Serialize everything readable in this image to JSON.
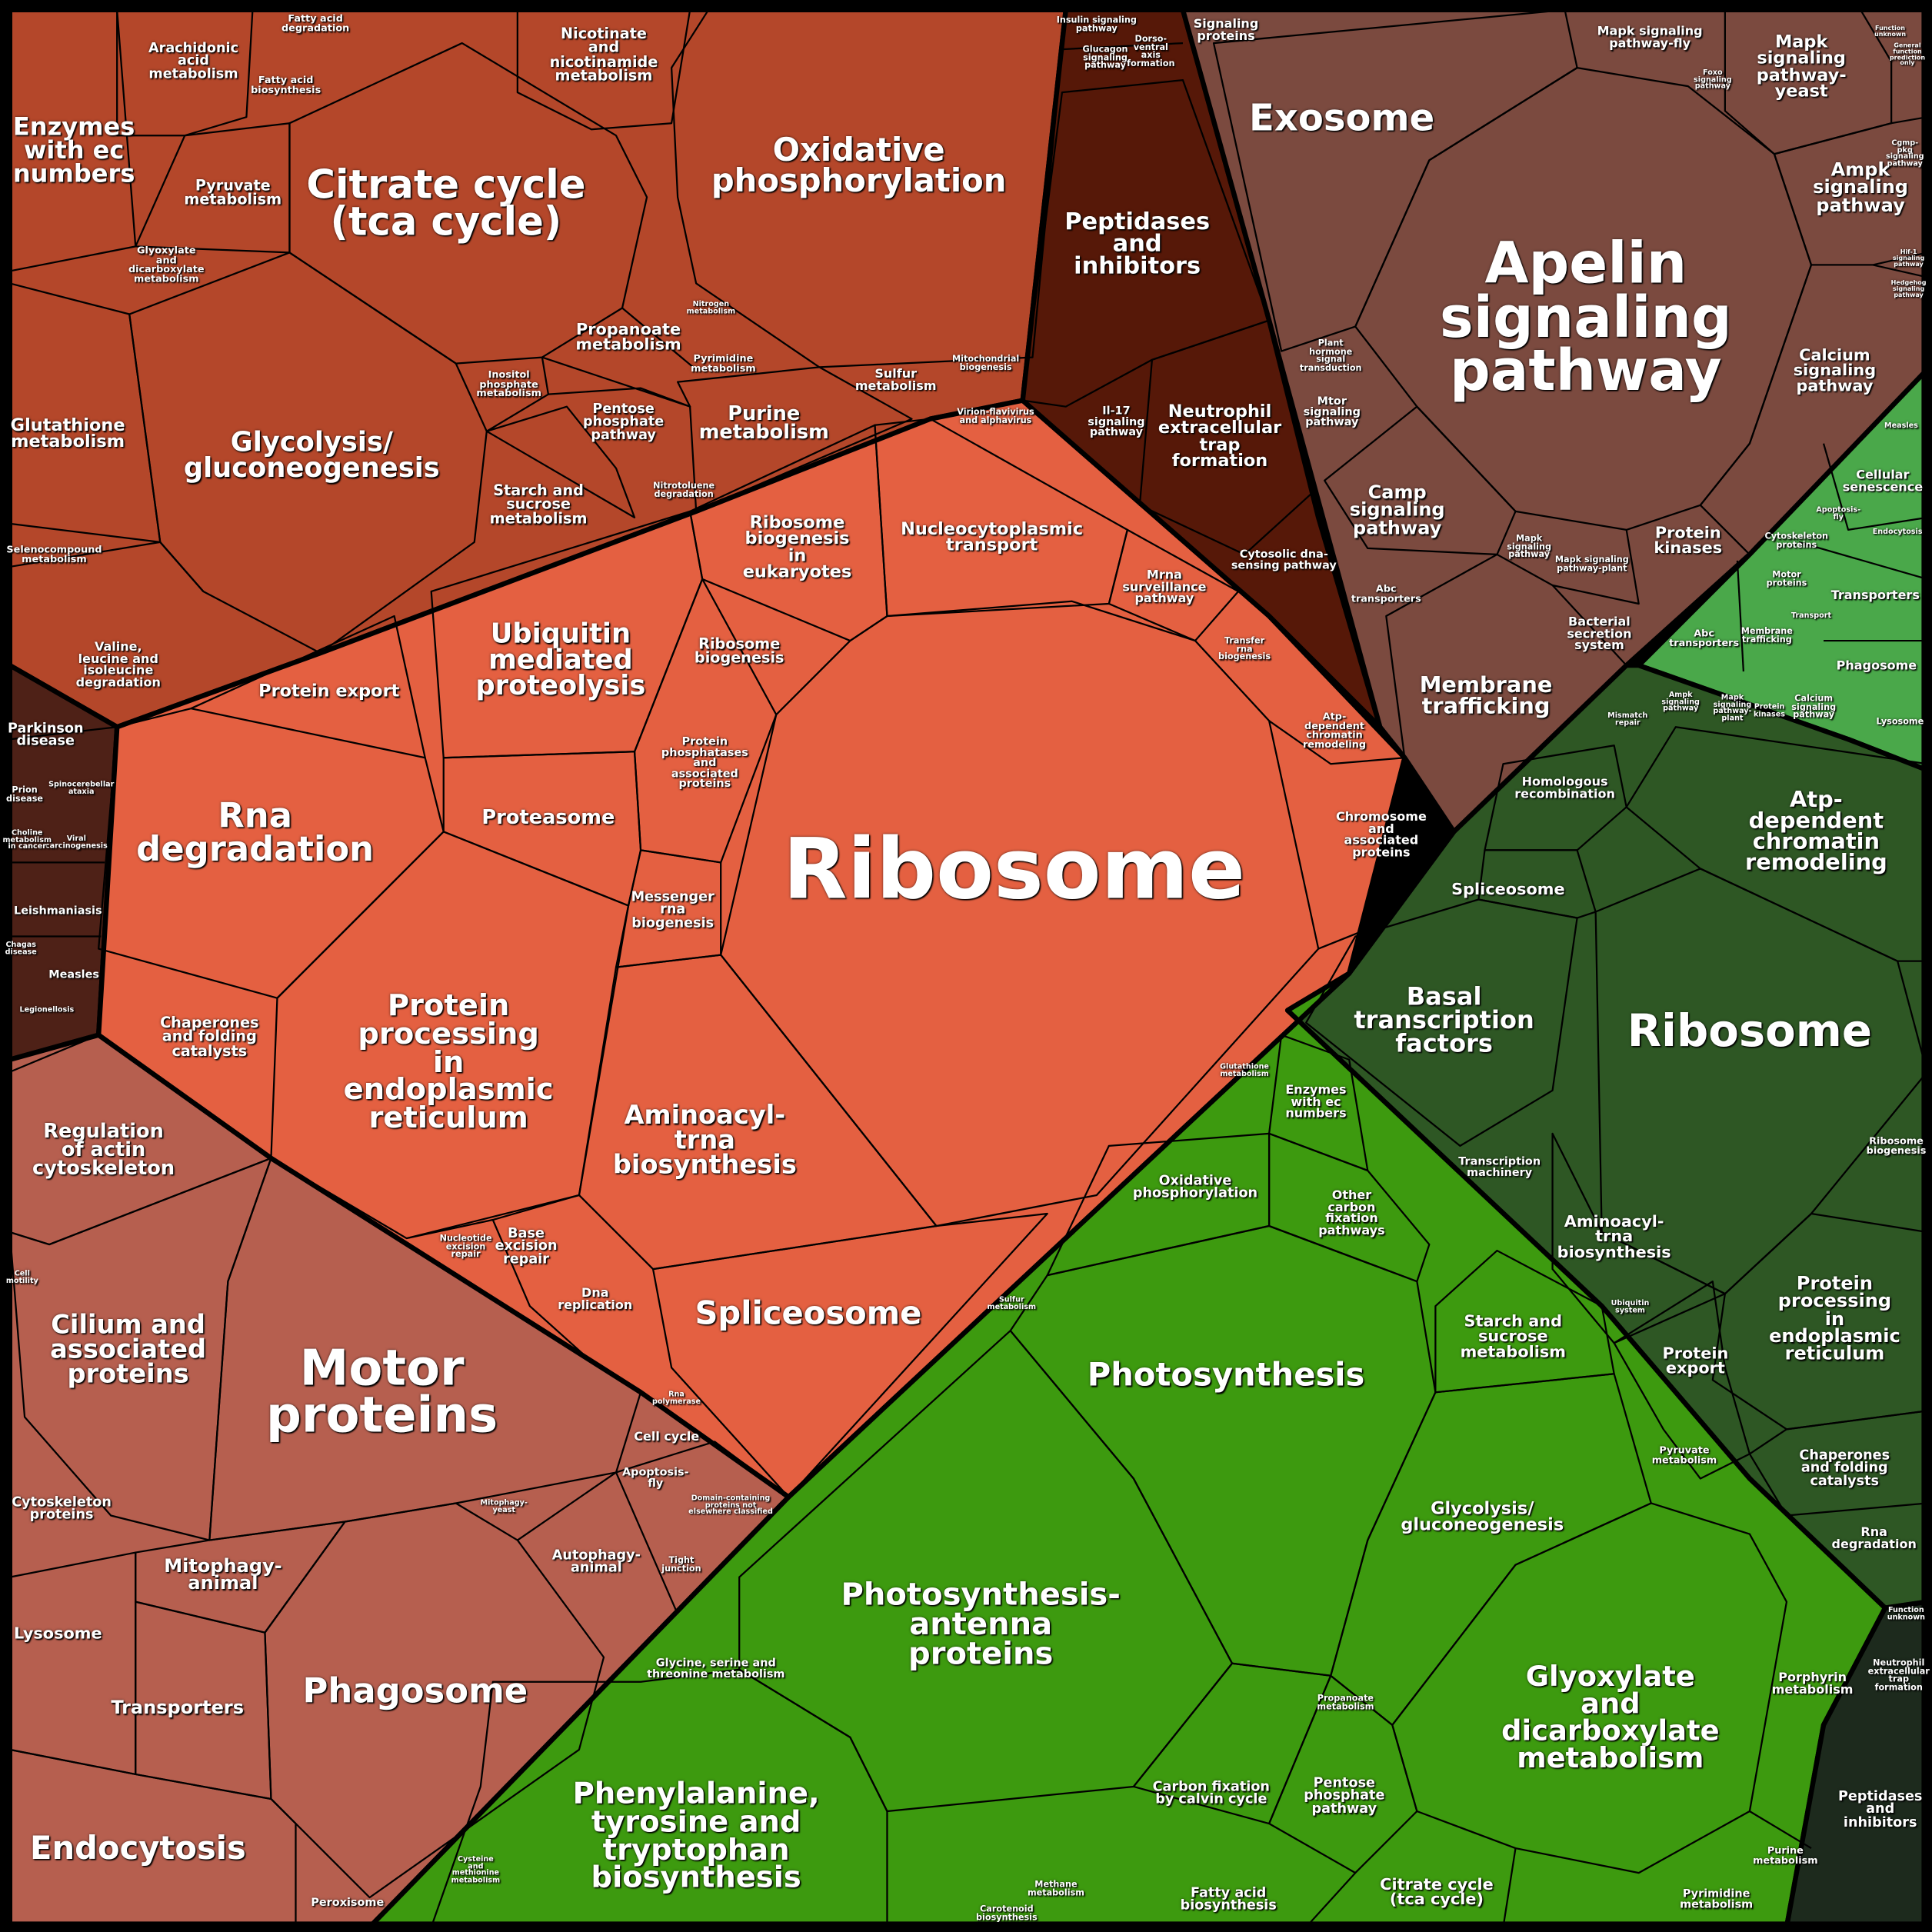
{
  "colors": {
    "metabolism_group": "#b4472a",
    "genetic_group": "#e46041",
    "disease_group": "#4e2117",
    "cellular_group": "#b65f4f",
    "signaling_maroon_group": "#561808",
    "signaling_brown_group": "#7b4a3f",
    "light_green_group": "#4aa84a",
    "dark_green_group": "#2e5724",
    "bright_green_group": "#3d9a0f",
    "darkest_group": "#1d2a1d",
    "border": "#000000",
    "label_text": "#ffffff"
  },
  "labels": [
    {
      "text": "Enzymes\nwith ec\nnumbers"
    },
    {
      "text": "Arachidonic\nacid\nmetabolism"
    },
    {
      "text": "Fatty acid\ndegradation"
    },
    {
      "text": "Fatty acid\nbiosynthesis"
    },
    {
      "text": "Citrate cycle\n(tca cycle)"
    },
    {
      "text": "Nicotinate\nand\nnicotinamide\nmetabolism"
    },
    {
      "text": "Oxidative\nphosphorylation"
    },
    {
      "text": "Pyruvate\nmetabolism"
    },
    {
      "text": "Glyoxylate\nand\ndicarboxylate\nmetabolism"
    },
    {
      "text": "Glutathione\nmetabolism"
    },
    {
      "text": "Glycolysis/\ngluconeogenesis"
    },
    {
      "text": "Propanoate\nmetabolism"
    },
    {
      "text": "Inositol\nphosphate\nmetabolism"
    },
    {
      "text": "Pentose\nphosphate\npathway"
    },
    {
      "text": "Purine\nmetabolism"
    },
    {
      "text": "Sulfur\nmetabolism"
    },
    {
      "text": "Pyrimidine\nmetabolism"
    },
    {
      "text": "Mitochondrial\nbiogenesis"
    },
    {
      "text": "Starch and\nsucrose\nmetabolism"
    },
    {
      "text": "Selenocompound\nmetabolism"
    },
    {
      "text": "Valine,\nleucine and\nisoleucine\ndegradation"
    },
    {
      "text": "Nitrogen\nmetabolism"
    },
    {
      "text": "Nitrotoluene\ndegradation"
    },
    {
      "text": "Parkinson\ndisease"
    },
    {
      "text": "Leishmaniasis"
    },
    {
      "text": "Measles"
    },
    {
      "text": "Prion\ndisease"
    },
    {
      "text": "Legionellosis"
    },
    {
      "text": "Chagas\ndisease"
    },
    {
      "text": "Viral\ncarcinogenesis"
    },
    {
      "text": "Spinocerebellar\nataxia"
    },
    {
      "text": "Choline\nmetabolism\nin cancer"
    },
    {
      "text": "Ribosome"
    },
    {
      "text": "Nucleocytoplasmic\ntransport"
    },
    {
      "text": "Ribosome\nbiogenesis\nin\neukaryotes"
    },
    {
      "text": "Ribosome\nbiogenesis"
    },
    {
      "text": "Ubiquitin\nmediated\nproteolysis"
    },
    {
      "text": "Protein export"
    },
    {
      "text": "Rna\ndegradation"
    },
    {
      "text": "Proteasome"
    },
    {
      "text": "Protein\nphosphatases\nand\nassociated\nproteins"
    },
    {
      "text": "Messenger\nrna\nbiogenesis"
    },
    {
      "text": "Chaperones\nand folding\ncatalysts"
    },
    {
      "text": "Protein\nprocessing\nin\nendoplasmic\nreticulum"
    },
    {
      "text": "Aminoacyl-\ntrna\nbiosynthesis"
    },
    {
      "text": "Spliceosome"
    },
    {
      "text": "Base\nexcision\nrepair"
    },
    {
      "text": "Nucleotide\nexcision\nrepair"
    },
    {
      "text": "Dna\nreplication"
    },
    {
      "text": "Mrna\nsurveillance\npathway"
    },
    {
      "text": "Transfer\nrna\nbiogenesis"
    },
    {
      "text": "Atp-\ndependent\nchromatin\nremodeling"
    },
    {
      "text": "Chromosome\nand\nassociated\nproteins"
    },
    {
      "text": "Virion-flavivirus\nand alphavirus"
    },
    {
      "text": "Rna\npolymerase"
    },
    {
      "text": "Peptidases\nand\ninhibitors"
    },
    {
      "text": "Neutrophil\nextracellular\ntrap\nformation"
    },
    {
      "text": "Il-17\nsignaling\npathway"
    },
    {
      "text": "Cytosolic dna-\nsensing pathway"
    },
    {
      "text": "Insulin signaling\npathway"
    },
    {
      "text": "Glucagon\nsignaling\npathway"
    },
    {
      "text": "Dorso-\nventral\naxis\nformation"
    },
    {
      "text": "Signaling\nproteins"
    },
    {
      "text": "Exosome"
    },
    {
      "text": "Apelin\nsignaling\npathway"
    },
    {
      "text": "Mapk signaling\npathway-fly"
    },
    {
      "text": "Mapk\nsignaling\npathway-\nyeast"
    },
    {
      "text": "Ampk\nsignaling\npathway"
    },
    {
      "text": "Calcium\nsignaling\npathway"
    },
    {
      "text": "Camp\nsignaling\npathway"
    },
    {
      "text": "Mtor\nsignaling\npathway"
    },
    {
      "text": "Plant\nhormone\nsignal\ntransduction"
    },
    {
      "text": "Protein\nkinases"
    },
    {
      "text": "Mapk\nsignaling\npathway"
    },
    {
      "text": "Mapk signaling\npathway-plant"
    },
    {
      "text": "Abc\ntransporters"
    },
    {
      "text": "Bacterial\nsecretion\nsystem"
    },
    {
      "text": "Membrane\ntrafficking"
    },
    {
      "text": "Foxo\nsignaling\npathway"
    },
    {
      "text": "Function\nunknown"
    },
    {
      "text": "General\nfunction\nprediction\nonly"
    },
    {
      "text": "Cgmp-\npkg\nsignaling\npathway"
    },
    {
      "text": "Hif-1\nsignaling\npathway"
    },
    {
      "text": "Hedgehog\nsignaling\npathway"
    },
    {
      "text": "Cellular\nsenescence"
    },
    {
      "text": "Transporters"
    },
    {
      "text": "Phagosome"
    },
    {
      "text": "Lysosome"
    },
    {
      "text": "Measles"
    },
    {
      "text": "Cytoskeleton\nproteins"
    },
    {
      "text": "Motor\nproteins"
    },
    {
      "text": "Apoptosis-\nfly"
    },
    {
      "text": "Endocytosis"
    },
    {
      "text": "Transport"
    },
    {
      "text": "Abc\ntransporters"
    },
    {
      "text": "Membrane\ntrafficking"
    },
    {
      "text": "Ampk\nsignaling\npathway"
    },
    {
      "text": "Mapk\nsignaling\npathway-\nplant"
    },
    {
      "text": "Protein\nkinases"
    },
    {
      "text": "Calcium\nsignaling\npathway"
    },
    {
      "text": "Homologous\nrecombination"
    },
    {
      "text": "Atp-\ndependent\nchromatin\nremodeling"
    },
    {
      "text": "Spliceosome"
    },
    {
      "text": "Basal\ntranscription\nfactors"
    },
    {
      "text": "Ribosome"
    },
    {
      "text": "Transcription\nmachinery"
    },
    {
      "text": "Aminoacyl-\ntrna\nbiosynthesis"
    },
    {
      "text": "Ribosome\nbiogenesis"
    },
    {
      "text": "Protein\nprocessing\nin\nendoplasmic\nreticulum"
    },
    {
      "text": "Protein\nexport"
    },
    {
      "text": "Chaperones\nand folding\ncatalysts"
    },
    {
      "text": "Rna\ndegradation"
    },
    {
      "text": "Mismatch\nrepair"
    },
    {
      "text": "Ubiquitin\nsystem"
    },
    {
      "text": "Photosynthesis"
    },
    {
      "text": "Photosynthesis-\nantenna\nproteins"
    },
    {
      "text": "Oxidative\nphosphorylation"
    },
    {
      "text": "Enzymes\nwith ec\nnumbers"
    },
    {
      "text": "Other\ncarbon\nfixation\npathways"
    },
    {
      "text": "Starch and\nsucrose\nmetabolism"
    },
    {
      "text": "Glycolysis/\ngluconeogenesis"
    },
    {
      "text": "Glyoxylate\nand\ndicarboxylate\nmetabolism"
    },
    {
      "text": "Phenylalanine,\ntyrosine and\ntryptophan\nbiosynthesis"
    },
    {
      "text": "Glycine, serine and\nthreonine metabolism"
    },
    {
      "text": "Carbon fixation\nby calvin cycle"
    },
    {
      "text": "Pentose\nphosphate\npathway"
    },
    {
      "text": "Citrate cycle\n(tca cycle)"
    },
    {
      "text": "Fatty acid\nbiosynthesis"
    },
    {
      "text": "Porphyrin\nmetabolism"
    },
    {
      "text": "Pyruvate\nmetabolism"
    },
    {
      "text": "Propanoate\nmetabolism"
    },
    {
      "text": "Purine\nmetabolism"
    },
    {
      "text": "Pyrimidine\nmetabolism"
    },
    {
      "text": "Methane\nmetabolism"
    },
    {
      "text": "Carotenoid\nbiosynthesis"
    },
    {
      "text": "Cysteine\nand\nmethionine\nmetabolism"
    },
    {
      "text": "Sulfur\nmetabolism"
    },
    {
      "text": "Glutathione\nmetabolism"
    },
    {
      "text": "Peptidases\nand\ninhibitors"
    },
    {
      "text": "Neutrophil\nextracellular\ntrap\nformation"
    },
    {
      "text": "Function\nunknown"
    },
    {
      "text": "Regulation\nof actin\ncytoskeleton"
    },
    {
      "text": "Cilium and\nassociated\nproteins"
    },
    {
      "text": "Motor\nproteins"
    },
    {
      "text": "Cytoskeleton\nproteins"
    },
    {
      "text": "Mitophagy-\nanimal"
    },
    {
      "text": "Lysosome"
    },
    {
      "text": "Transporters"
    },
    {
      "text": "Phagosome"
    },
    {
      "text": "Endocytosis"
    },
    {
      "text": "Peroxisome"
    },
    {
      "text": "Autophagy-\nanimal"
    },
    {
      "text": "Cell cycle"
    },
    {
      "text": "Apoptosis-\nfly"
    },
    {
      "text": "Tight\njunction"
    },
    {
      "text": "Domain-containing\nproteins not\nelsewhere classified"
    },
    {
      "text": "Mitophagy-\nyeast"
    },
    {
      "text": "Cell\nmotility"
    }
  ]
}
